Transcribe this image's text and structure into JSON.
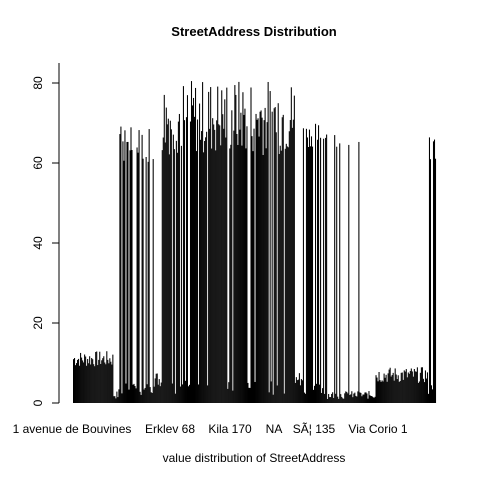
{
  "chart_data": {
    "type": "bar",
    "title": "StreetAddress Distribution",
    "xlabel": "value distribution of StreetAddress",
    "ylabel": "",
    "ylim": [
      0,
      85
    ],
    "yticks": [
      0,
      20,
      40,
      60,
      80
    ],
    "grid": false,
    "bar_color": "#000000",
    "x_tick_labels": [
      "1 avenue de Bouvines",
      "Erklev 68",
      "Kila 170",
      "NA",
      "SÃ¦ 135",
      "Via Corio 1"
    ],
    "bar_count": 360,
    "segments": [
      {
        "from": 0,
        "to": 40,
        "values_range": [
          9,
          13
        ],
        "pattern": "low"
      },
      {
        "from": 40,
        "to": 45,
        "values_range": [
          1,
          3
        ],
        "pattern": "gap"
      },
      {
        "from": 45,
        "to": 80,
        "values_range": [
          60,
          72
        ],
        "pattern": "high-sparse"
      },
      {
        "from": 80,
        "to": 88,
        "values_range": [
          4,
          8
        ],
        "pattern": "low"
      },
      {
        "from": 88,
        "to": 220,
        "values_range": [
          62,
          81
        ],
        "pattern": "high-dense"
      },
      {
        "from": 220,
        "to": 228,
        "values_range": [
          4,
          8
        ],
        "pattern": "low"
      },
      {
        "from": 228,
        "to": 252,
        "values_range": [
          64,
          70
        ],
        "pattern": "high-sparse"
      },
      {
        "from": 252,
        "to": 300,
        "values_range": [
          1,
          3
        ],
        "pattern": "gap-with-spikes"
      },
      {
        "from": 300,
        "to": 352,
        "values_range": [
          5,
          9
        ],
        "pattern": "low"
      },
      {
        "from": 352,
        "to": 360,
        "values_range": [
          60,
          68
        ],
        "pattern": "high-sparse"
      }
    ]
  }
}
